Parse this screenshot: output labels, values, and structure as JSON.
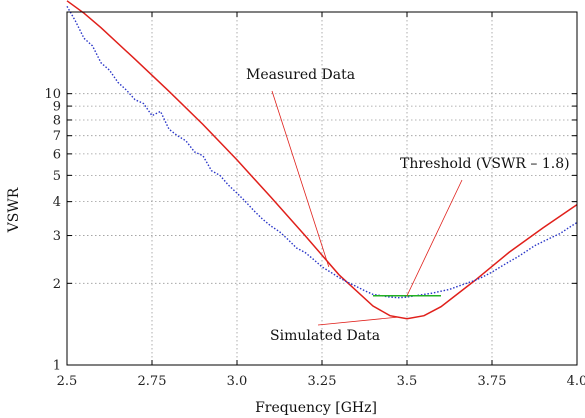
{
  "chart_data": {
    "type": "line",
    "title": "",
    "xlabel": "Frequency  [GHz]",
    "ylabel": "VSWR",
    "xlim": [
      2.5,
      4.0
    ],
    "ylim": [
      1,
      20
    ],
    "y_scale": "log",
    "grid": true,
    "x_ticks": [
      2.5,
      2.75,
      3.0,
      3.25,
      3.5,
      3.75,
      4.0
    ],
    "x_tick_labels": [
      "2.5",
      "2.75",
      "3.0",
      "3.25",
      "3.5",
      "3.75",
      "4.0"
    ],
    "y_ticks": [
      1,
      2,
      3,
      4,
      5,
      6,
      7,
      8,
      9,
      10
    ],
    "y_tick_labels": [
      "1",
      "2",
      "3",
      "4",
      "5",
      "6",
      "7",
      "8",
      "9",
      "10"
    ],
    "series": [
      {
        "name": "Simulated Data",
        "style": "solid",
        "color": "#e0201b",
        "x": [
          2.5,
          2.55,
          2.6,
          2.7,
          2.8,
          2.9,
          3.0,
          3.1,
          3.2,
          3.3,
          3.4,
          3.45,
          3.5,
          3.55,
          3.6,
          3.7,
          3.8,
          3.9,
          4.0
        ],
        "y": [
          22.0,
          19.8,
          17.5,
          13.4,
          10.2,
          7.7,
          5.7,
          4.15,
          3.0,
          2.15,
          1.65,
          1.52,
          1.48,
          1.52,
          1.64,
          2.05,
          2.6,
          3.2,
          3.9
        ]
      },
      {
        "name": "Measured Data",
        "style": "dotted",
        "color": "#2a36c8",
        "x": [
          2.5,
          2.525,
          2.55,
          2.575,
          2.6,
          2.625,
          2.65,
          2.675,
          2.7,
          2.725,
          2.75,
          2.775,
          2.8,
          2.825,
          2.85,
          2.875,
          2.9,
          2.925,
          2.95,
          2.975,
          3.0,
          3.025,
          3.05,
          3.075,
          3.1,
          3.125,
          3.15,
          3.175,
          3.2,
          3.225,
          3.25,
          3.275,
          3.3,
          3.325,
          3.35,
          3.375,
          3.4,
          3.425,
          3.45,
          3.475,
          3.5,
          3.525,
          3.55,
          3.575,
          3.6,
          3.625,
          3.65,
          3.675,
          3.7,
          3.725,
          3.75,
          3.775,
          3.8,
          3.825,
          3.85,
          3.875,
          3.9,
          3.925,
          3.95,
          3.975,
          4.0
        ],
        "y": [
          21.0,
          18.5,
          16.0,
          15.0,
          13.0,
          12.2,
          11.0,
          10.3,
          9.5,
          9.2,
          8.3,
          8.6,
          7.4,
          7.0,
          6.7,
          6.1,
          5.9,
          5.2,
          5.0,
          4.6,
          4.3,
          4.0,
          3.7,
          3.45,
          3.25,
          3.1,
          2.9,
          2.7,
          2.6,
          2.45,
          2.3,
          2.2,
          2.1,
          2.02,
          1.95,
          1.88,
          1.82,
          1.8,
          1.78,
          1.77,
          1.78,
          1.8,
          1.82,
          1.84,
          1.87,
          1.9,
          1.95,
          2.0,
          2.05,
          2.12,
          2.2,
          2.3,
          2.4,
          2.5,
          2.62,
          2.75,
          2.85,
          2.95,
          3.05,
          3.2,
          3.35
        ]
      },
      {
        "name": "Threshold (VSWR – 1.8)",
        "style": "solid",
        "color": "#22b022",
        "x": [
          3.4,
          3.6
        ],
        "y": [
          1.8,
          1.8
        ]
      }
    ],
    "annotations": [
      {
        "text": "Measured Data",
        "target_x": 3.27,
        "target_y": 2.3
      },
      {
        "text": "Threshold (VSWR – 1.8)",
        "target_x": 3.5,
        "target_y": 1.8
      },
      {
        "text": "Simulated Data",
        "target_x": 3.47,
        "target_y": 1.5
      }
    ]
  }
}
